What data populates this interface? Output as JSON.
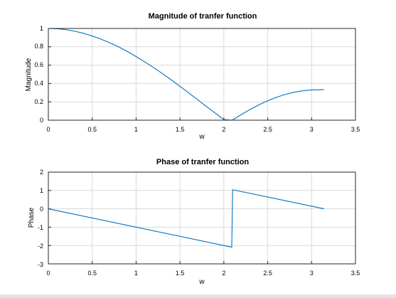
{
  "chart_data": [
    {
      "type": "line",
      "title": "Magnitude of tranfer function",
      "xlabel": "w",
      "ylabel": "Magnitude",
      "xlim": [
        0,
        3.5
      ],
      "ylim": [
        0,
        1
      ],
      "xticks": [
        "0",
        "0.5",
        "1",
        "1.5",
        "2",
        "2.5",
        "3",
        "3.5"
      ],
      "yticks": [
        "0",
        "0.2",
        "0.4",
        "0.6",
        "0.8",
        "1"
      ],
      "grid": true,
      "series": [
        {
          "color": "#0072bd",
          "x": [
            0,
            0.1,
            0.2,
            0.3,
            0.4,
            0.5,
            0.6,
            0.7,
            0.8,
            0.9,
            1.0,
            1.1,
            1.2,
            1.3,
            1.4,
            1.5,
            1.6,
            1.7,
            1.8,
            1.9,
            2.0,
            2.0944,
            2.2,
            2.3,
            2.4,
            2.5,
            2.6,
            2.7,
            2.8,
            2.9,
            3.0,
            3.1416
          ],
          "y": [
            1.0,
            0.997,
            0.987,
            0.97,
            0.947,
            0.918,
            0.884,
            0.844,
            0.799,
            0.749,
            0.694,
            0.635,
            0.573,
            0.508,
            0.44,
            0.369,
            0.297,
            0.224,
            0.151,
            0.078,
            0.006,
            0.0,
            0.062,
            0.118,
            0.168,
            0.212,
            0.25,
            0.281,
            0.305,
            0.321,
            0.33,
            0.333
          ]
        }
      ]
    },
    {
      "type": "line",
      "title": "Phase of tranfer function",
      "xlabel": "w",
      "ylabel": "Phase",
      "xlim": [
        0,
        3.5
      ],
      "ylim": [
        -3,
        2
      ],
      "xticks": [
        "0",
        "0.5",
        "1",
        "1.5",
        "2",
        "2.5",
        "3",
        "3.5"
      ],
      "yticks": [
        "-3",
        "-2",
        "-1",
        "0",
        "1",
        "2"
      ],
      "grid": true,
      "series": [
        {
          "color": "#0072bd",
          "x": [
            0,
            2.09,
            2.1,
            3.1416
          ],
          "y": [
            0,
            -2.09,
            1.04,
            0.0
          ]
        }
      ]
    }
  ]
}
